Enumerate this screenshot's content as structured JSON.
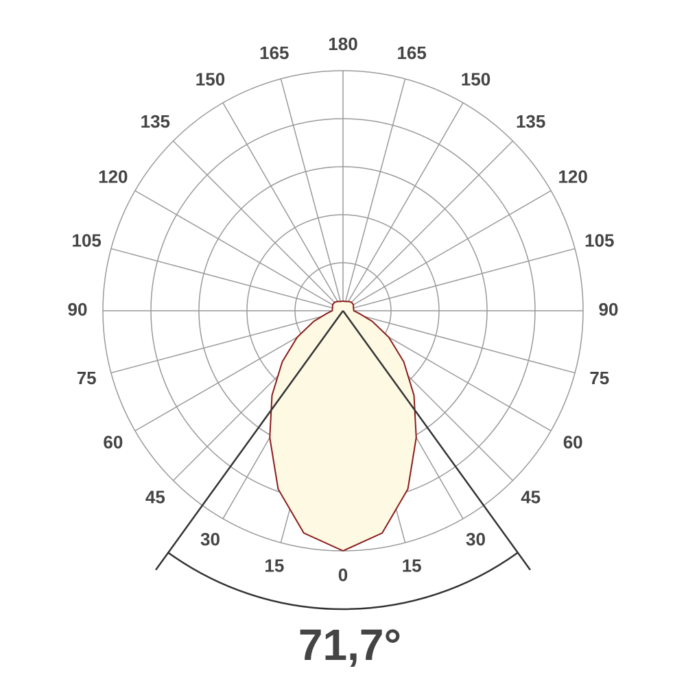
{
  "chart_data": {
    "type": "polar",
    "angle_ticks": [
      0,
      15,
      30,
      45,
      60,
      75,
      90,
      105,
      120,
      135,
      150,
      165,
      180
    ],
    "rlim": [
      0,
      100
    ],
    "rticks": [
      20,
      40,
      60,
      80,
      100
    ],
    "grid": true,
    "angles": [
      0,
      10,
      20,
      30,
      40,
      50,
      60,
      70,
      80,
      90,
      105,
      120,
      135,
      150,
      165,
      180
    ],
    "values": [
      100,
      94,
      79,
      61,
      46,
      33,
      22,
      13,
      7,
      4.5,
      4.5,
      5,
      5,
      4.5,
      4,
      4
    ],
    "color": "#8b1a1a",
    "fill": "#fdf9e3",
    "beam_angle": {
      "value": 71.7,
      "label": "71,7°"
    }
  }
}
